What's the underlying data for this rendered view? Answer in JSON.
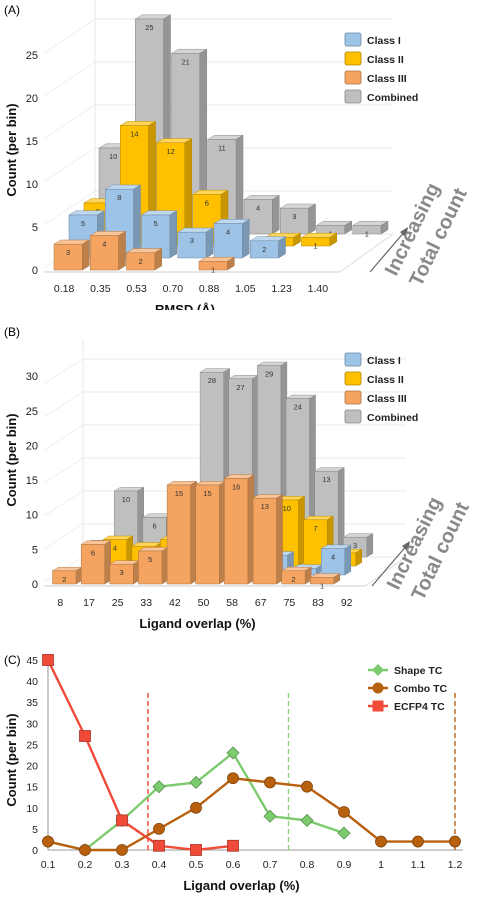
{
  "colors": {
    "class1": "#9DC3E6",
    "class2": "#FFC000",
    "class3": "#F4A460",
    "combined": "#BFBFBF",
    "shape": "#7CCB6E",
    "combo": "#B8600D",
    "ecfp4": "#F04A38",
    "shape_line": "#8FD17F",
    "combo_line": "#B8600D",
    "ecfp4_line": "#F04A38"
  },
  "side_note": {
    "line1": "Increasing",
    "line2": "Total count"
  },
  "chart_data": [
    {
      "panel": "(A)",
      "type": "bar",
      "title": "",
      "xlabel": "RMSD (Å)",
      "ylabel": "Count (per bin)",
      "categories": [
        "0.18",
        "0.35",
        "0.53",
        "0.70",
        "0.88",
        "1.05",
        "1.23",
        "1.40"
      ],
      "yticks": [
        "0",
        "5",
        "10",
        "15",
        "20",
        "25"
      ],
      "ylim": [
        0,
        28
      ],
      "legend_position": "top-right",
      "grid": true,
      "series": [
        {
          "name": "Class I",
          "color_key": "class1",
          "values": [
            5,
            8,
            5,
            3,
            4,
            2,
            null,
            null
          ]
        },
        {
          "name": "Class II",
          "color_key": "class2",
          "values": [
            5,
            14,
            12,
            6,
            null,
            1,
            1,
            null
          ]
        },
        {
          "name": "Class III",
          "color_key": "class3",
          "values": [
            3,
            4,
            2,
            null,
            1,
            null,
            null,
            null
          ]
        },
        {
          "name": "Combined",
          "color_key": "combined",
          "values": [
            10,
            25,
            21,
            11,
            4,
            3,
            1,
            1
          ]
        }
      ]
    },
    {
      "panel": "(B)",
      "type": "bar",
      "title": "",
      "xlabel": "Ligand overlap (%)",
      "ylabel": "Count (per bin)",
      "categories": [
        "8",
        "17",
        "25",
        "33",
        "42",
        "50",
        "58",
        "67",
        "75",
        "83",
        "92"
      ],
      "yticks": [
        "0",
        "5",
        "10",
        "15",
        "20",
        "25",
        "30"
      ],
      "ylim": [
        0,
        33
      ],
      "legend_position": "top-right",
      "grid": true,
      "series": [
        {
          "name": "Class I",
          "color_key": "class1",
          "values": [
            null,
            null,
            null,
            null,
            null,
            1,
            3,
            3,
            1,
            4,
            null
          ]
        },
        {
          "name": "Class II",
          "color_key": "class2",
          "values": [
            null,
            4,
            3,
            4,
            12,
            9,
            10,
            10,
            7,
            2,
            null
          ]
        },
        {
          "name": "Class III",
          "color_key": "class3",
          "values": [
            2,
            6,
            3,
            5,
            15,
            15,
            16,
            13,
            2,
            1,
            null
          ]
        },
        {
          "name": "Combined",
          "color_key": "combined",
          "values": [
            2,
            10,
            6,
            9,
            28,
            27,
            29,
            24,
            13,
            3,
            null
          ]
        }
      ]
    },
    {
      "panel": "(C)",
      "type": "line",
      "title": "",
      "xlabel": "Ligand overlap (%)",
      "ylabel": "Count (per bin)",
      "xticks": [
        "0.1",
        "0.2",
        "0.3",
        "0.4",
        "0.5",
        "0.6",
        "0.7",
        "0.8",
        "0.9",
        "1",
        "1.1",
        "1.2"
      ],
      "yticks": [
        "0",
        "5",
        "10",
        "15",
        "20",
        "25",
        "30",
        "35",
        "40",
        "45"
      ],
      "xlim": [
        0.1,
        1.2
      ],
      "ylim": [
        0,
        45
      ],
      "legend_position": "top-right",
      "grid": false,
      "series": [
        {
          "name": "Shape TC",
          "color_key": "shape",
          "marker": "diamond",
          "x": [
            0.1,
            0.2,
            0.3,
            0.4,
            0.5,
            0.6,
            0.7,
            0.8,
            0.9
          ],
          "y": [
            2,
            0,
            7,
            15,
            16,
            23,
            8,
            7,
            4
          ]
        },
        {
          "name": "Combo TC",
          "color_key": "combo",
          "marker": "circle",
          "x": [
            0.1,
            0.2,
            0.3,
            0.4,
            0.5,
            0.6,
            0.7,
            0.8,
            0.9,
            1.0,
            1.1,
            1.2
          ],
          "y": [
            2,
            0,
            0,
            5,
            10,
            17,
            16,
            15,
            9,
            2,
            2,
            2
          ]
        },
        {
          "name": "ECFP4 TC",
          "color_key": "ecfp4",
          "marker": "square",
          "x": [
            0.1,
            0.2,
            0.3,
            0.4,
            0.5,
            0.6
          ],
          "y": [
            45,
            27,
            7,
            1,
            0,
            1
          ]
        }
      ],
      "vlines": [
        {
          "x": 0.37,
          "color_key": "ecfp4_line"
        },
        {
          "x": 0.75,
          "color_key": "shape_line"
        },
        {
          "x": 1.2,
          "color_key": "combo_line"
        }
      ]
    }
  ]
}
